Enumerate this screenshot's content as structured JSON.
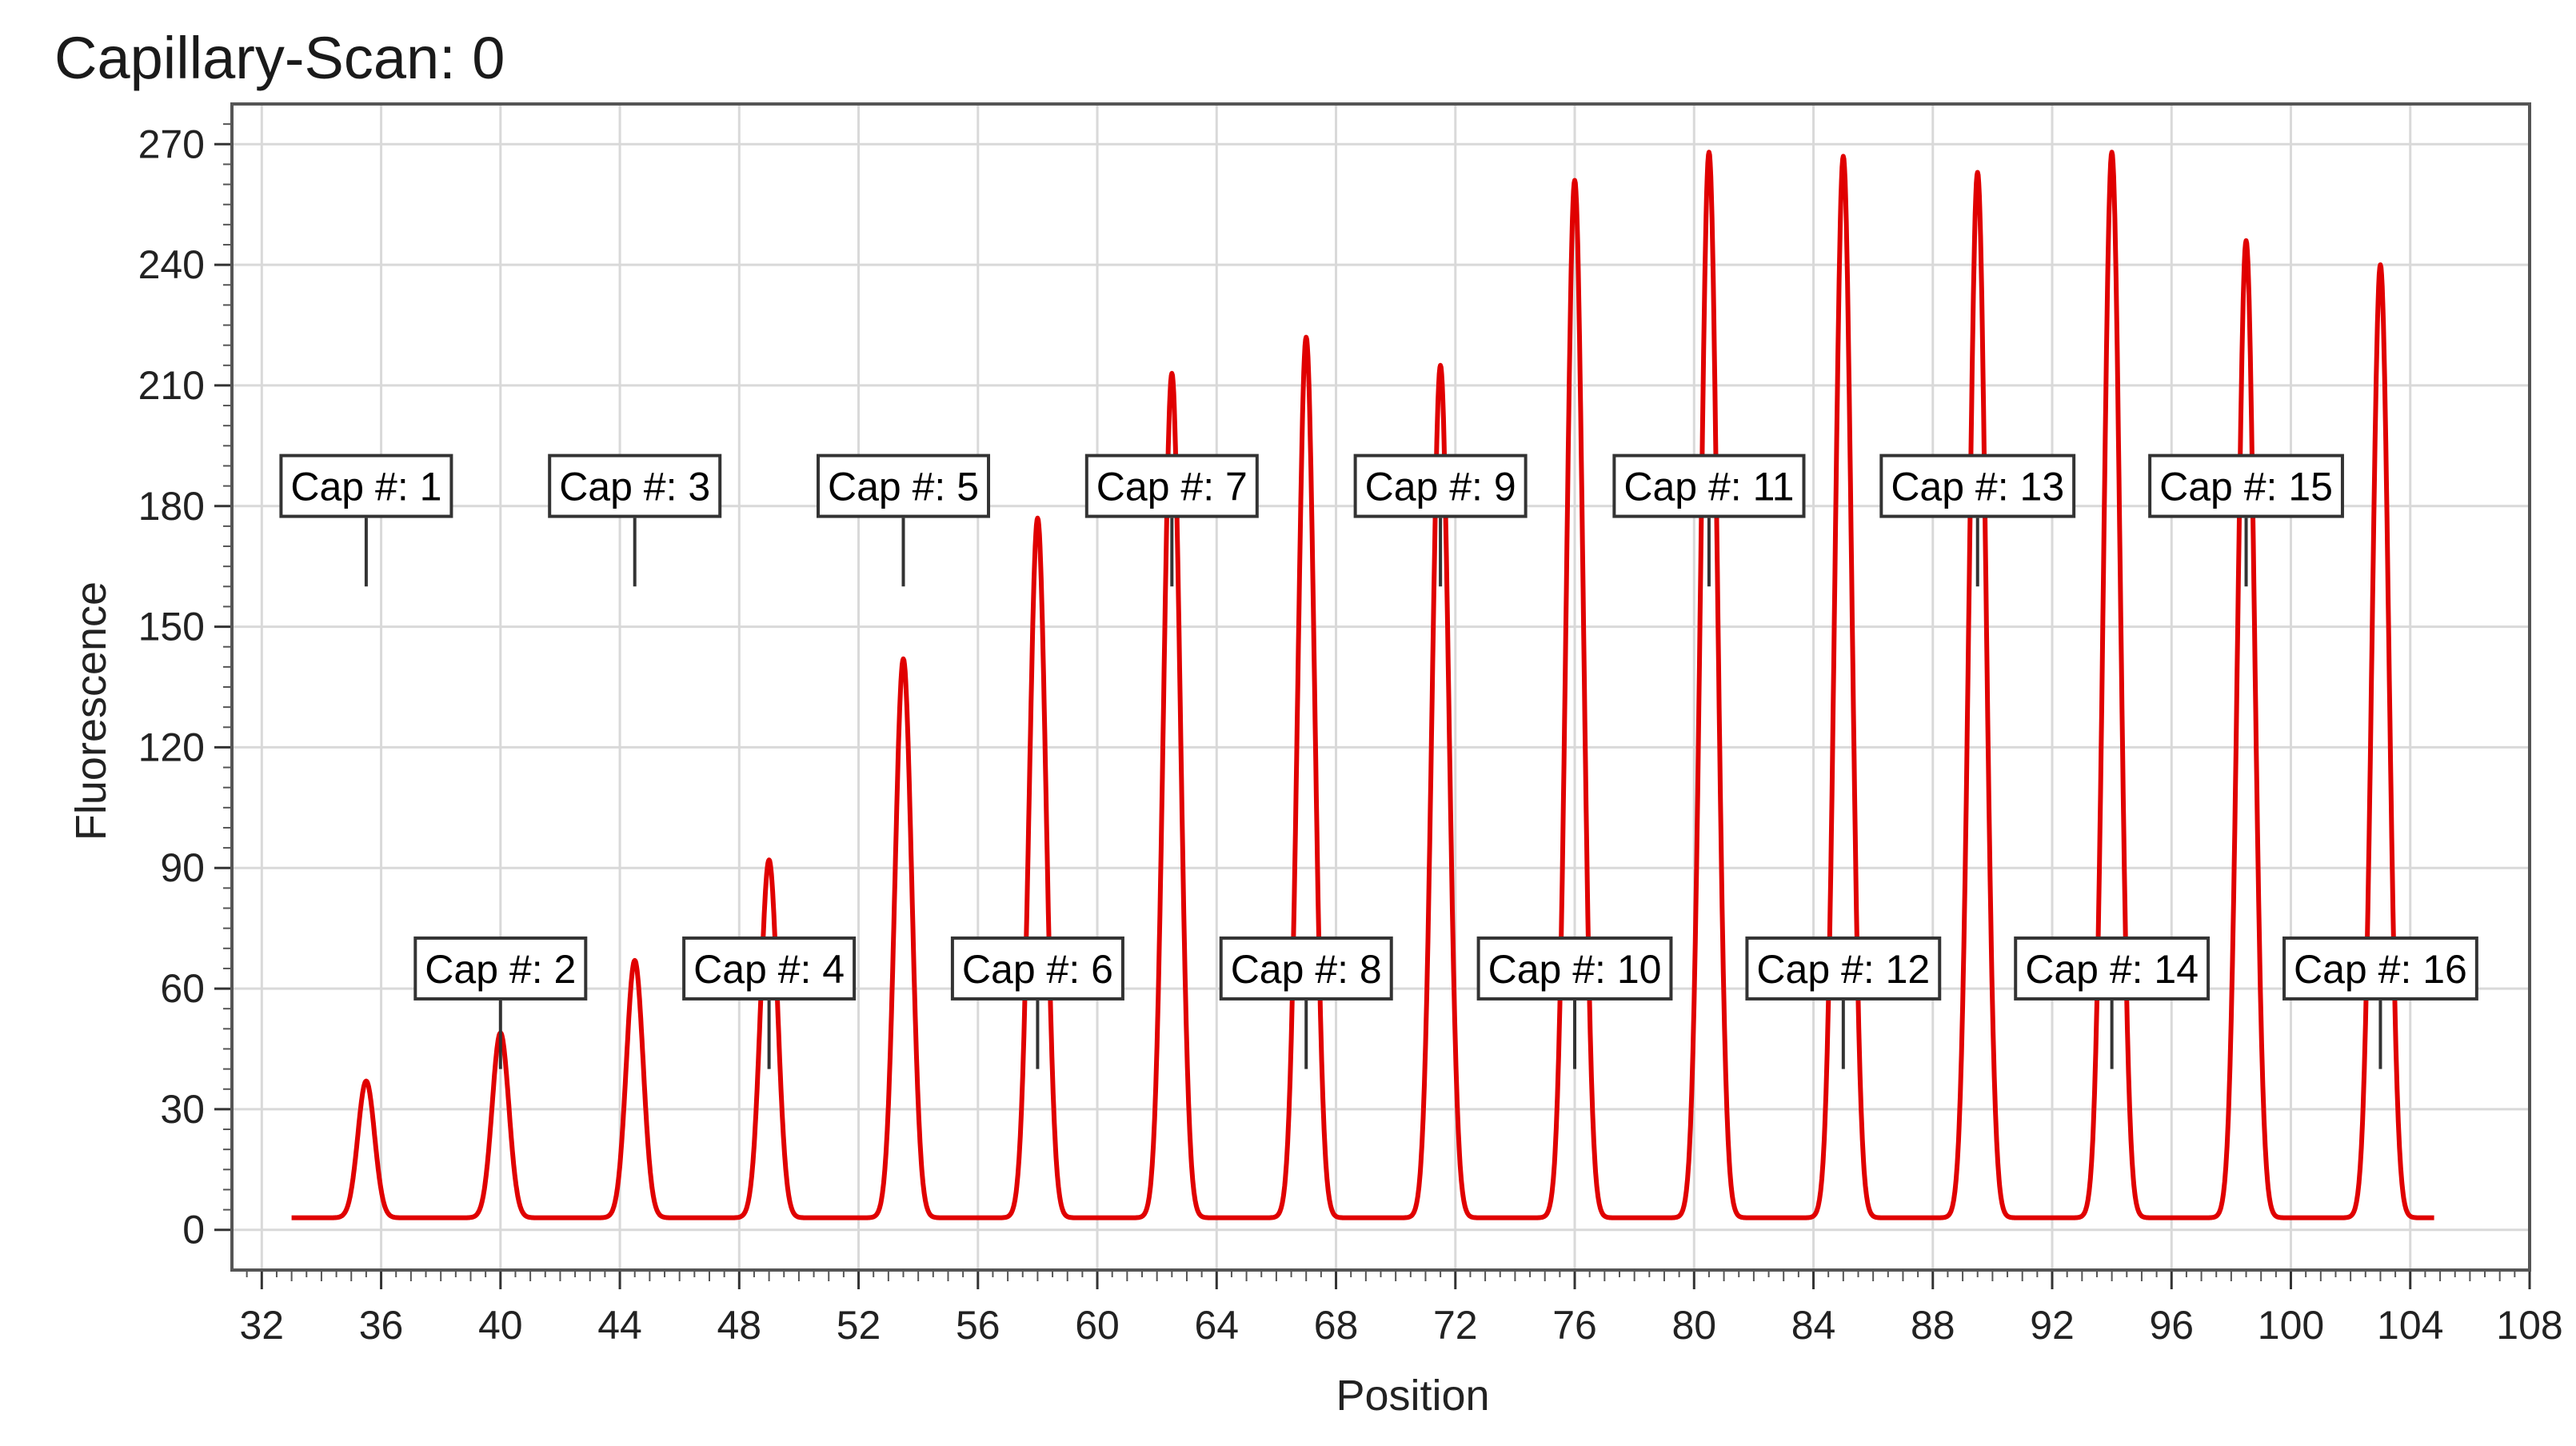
{
  "chart_data": {
    "type": "line",
    "title": "Capillary-Scan: 0",
    "xlabel": "Position",
    "ylabel": "Fluorescence",
    "xlim": [
      31,
      108
    ],
    "ylim": [
      -10,
      280
    ],
    "x_ticks": [
      "32",
      "36",
      "40",
      "44",
      "48",
      "52",
      "56",
      "60",
      "64",
      "68",
      "72",
      "76",
      "80",
      "84",
      "88",
      "92",
      "96",
      "100",
      "104",
      "108"
    ],
    "y_ticks": [
      "0",
      "30",
      "60",
      "90",
      "120",
      "150",
      "180",
      "210",
      "240",
      "270"
    ],
    "grid": true,
    "line_color": "#e00000",
    "baseline": 3,
    "x_start": 33,
    "x_end": 104.8,
    "series": [
      {
        "peaks": [
          {
            "x": 35.5,
            "y": 37
          },
          {
            "x": 40.0,
            "y": 49
          },
          {
            "x": 44.5,
            "y": 67
          },
          {
            "x": 49.0,
            "y": 92
          },
          {
            "x": 53.5,
            "y": 142
          },
          {
            "x": 58.0,
            "y": 177
          },
          {
            "x": 62.5,
            "y": 213
          },
          {
            "x": 67.0,
            "y": 222
          },
          {
            "x": 71.5,
            "y": 215
          },
          {
            "x": 76.0,
            "y": 261
          },
          {
            "x": 80.5,
            "y": 268
          },
          {
            "x": 85.0,
            "y": 267
          },
          {
            "x": 89.5,
            "y": 263
          },
          {
            "x": 94.0,
            "y": 268
          },
          {
            "x": 98.5,
            "y": 246
          },
          {
            "x": 103.0,
            "y": 240
          }
        ]
      }
    ],
    "annotations": [
      {
        "label": "Cap #: 1",
        "x": 35.5,
        "level": "upper"
      },
      {
        "label": "Cap #: 2",
        "x": 40.0,
        "level": "lower"
      },
      {
        "label": "Cap #: 3",
        "x": 44.5,
        "level": "upper"
      },
      {
        "label": "Cap #: 4",
        "x": 49.0,
        "level": "lower"
      },
      {
        "label": "Cap #: 5",
        "x": 53.5,
        "level": "upper"
      },
      {
        "label": "Cap #: 6",
        "x": 58.0,
        "level": "lower"
      },
      {
        "label": "Cap #: 7",
        "x": 62.5,
        "level": "upper"
      },
      {
        "label": "Cap #: 8",
        "x": 67.0,
        "level": "lower"
      },
      {
        "label": "Cap #: 9",
        "x": 71.5,
        "level": "upper"
      },
      {
        "label": "Cap #: 10",
        "x": 76.0,
        "level": "lower"
      },
      {
        "label": "Cap #: 11",
        "x": 80.5,
        "level": "upper"
      },
      {
        "label": "Cap #: 12",
        "x": 85.0,
        "level": "lower"
      },
      {
        "label": "Cap #: 13",
        "x": 89.5,
        "level": "upper"
      },
      {
        "label": "Cap #: 14",
        "x": 94.0,
        "level": "lower"
      },
      {
        "label": "Cap #: 15",
        "x": 98.5,
        "level": "upper"
      },
      {
        "label": "Cap #: 16",
        "x": 103.0,
        "level": "lower"
      }
    ]
  }
}
